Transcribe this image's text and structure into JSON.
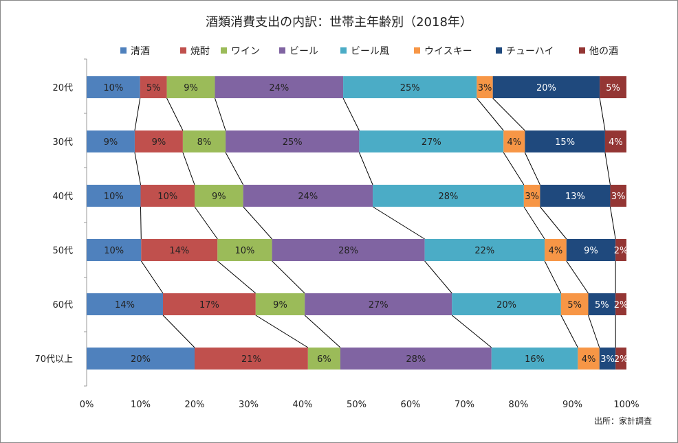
{
  "chart_data": {
    "type": "bar",
    "orientation": "horizontal-stacked-100",
    "title": "酒類消費支出の内訳：世帯主年齢別（2018年）",
    "source": "出所：家計調査",
    "categories": [
      "20代",
      "30代",
      "40代",
      "50代",
      "60代",
      "70代以上"
    ],
    "xlim": [
      0,
      100
    ],
    "xticks": [
      "0%",
      "10%",
      "20%",
      "30%",
      "40%",
      "50%",
      "60%",
      "70%",
      "80%",
      "90%",
      "100%"
    ],
    "legend_position": "top",
    "connector_lines": true,
    "series": [
      {
        "name": "清酒",
        "color": "#4F81BD",
        "label_color": "#222222",
        "values": [
          10,
          9,
          10,
          10,
          14,
          20
        ]
      },
      {
        "name": "焼酎",
        "color": "#C0504D",
        "label_color": "#222222",
        "values": [
          5,
          9,
          10,
          14,
          17,
          21
        ]
      },
      {
        "name": "ワイン",
        "color": "#9BBB59",
        "label_color": "#222222",
        "values": [
          9,
          8,
          9,
          10,
          9,
          6
        ]
      },
      {
        "name": "ビール",
        "color": "#8064A2",
        "label_color": "#222222",
        "values": [
          24,
          25,
          24,
          28,
          27,
          28
        ]
      },
      {
        "name": "ビール風",
        "color": "#4BACC6",
        "label_color": "#222222",
        "values": [
          25,
          27,
          28,
          22,
          20,
          16
        ]
      },
      {
        "name": "ウイスキー",
        "color": "#F79646",
        "label_color": "#222222",
        "values": [
          3,
          4,
          3,
          4,
          5,
          4
        ]
      },
      {
        "name": "チューハイ",
        "color": "#1F497D",
        "label_color": "#ffffff",
        "values": [
          20,
          15,
          13,
          9,
          5,
          3
        ]
      },
      {
        "name": "他の酒",
        "color": "#943634",
        "label_color": "#ffffff",
        "values": [
          5,
          4,
          3,
          2,
          2,
          2
        ]
      }
    ]
  }
}
